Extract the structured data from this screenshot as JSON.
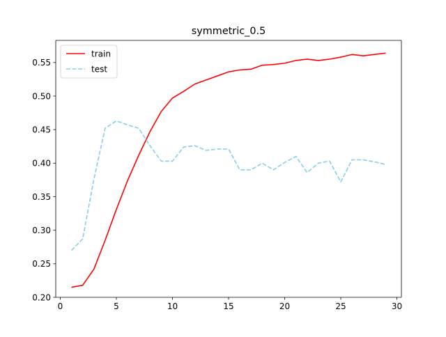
{
  "chart_data": {
    "type": "line",
    "title": "symmetric_0.5",
    "xlabel": "",
    "ylabel": "",
    "xlim": [
      -0.4,
      30.4
    ],
    "ylim": [
      0.2,
      0.583
    ],
    "x_ticks": [
      0,
      5,
      10,
      15,
      20,
      25,
      30
    ],
    "y_ticks": [
      0.2,
      0.25,
      0.3,
      0.35,
      0.4,
      0.45,
      0.5,
      0.55
    ],
    "x_tick_labels": [
      "0",
      "5",
      "10",
      "15",
      "20",
      "25",
      "30"
    ],
    "y_tick_labels": [
      "0.20",
      "0.25",
      "0.30",
      "0.35",
      "0.40",
      "0.45",
      "0.50",
      "0.55"
    ],
    "grid": false,
    "legend_position": "top-left",
    "x": [
      1,
      2,
      3,
      4,
      5,
      6,
      7,
      8,
      9,
      10,
      11,
      12,
      13,
      14,
      15,
      16,
      17,
      18,
      19,
      20,
      21,
      22,
      23,
      24,
      25,
      26,
      27,
      28,
      29
    ],
    "series": [
      {
        "name": "train",
        "color": "#ff0000",
        "line_style": "solid",
        "values": [
          0.215,
          0.218,
          0.242,
          0.285,
          0.331,
          0.374,
          0.412,
          0.447,
          0.477,
          0.497,
          0.507,
          0.518,
          0.524,
          0.53,
          0.536,
          0.539,
          0.54,
          0.546,
          0.547,
          0.549,
          0.553,
          0.555,
          0.553,
          0.555,
          0.558,
          0.562,
          0.56,
          0.562,
          0.564
        ]
      },
      {
        "name": "test",
        "color": "#87ceeb",
        "line_style": "dashed",
        "values": [
          0.27,
          0.287,
          0.376,
          0.452,
          0.463,
          0.457,
          0.452,
          0.426,
          0.403,
          0.403,
          0.424,
          0.426,
          0.419,
          0.421,
          0.421,
          0.39,
          0.39,
          0.4,
          0.39,
          0.401,
          0.41,
          0.386,
          0.4,
          0.403,
          0.372,
          0.405,
          0.405,
          0.402,
          0.398
        ]
      }
    ]
  }
}
